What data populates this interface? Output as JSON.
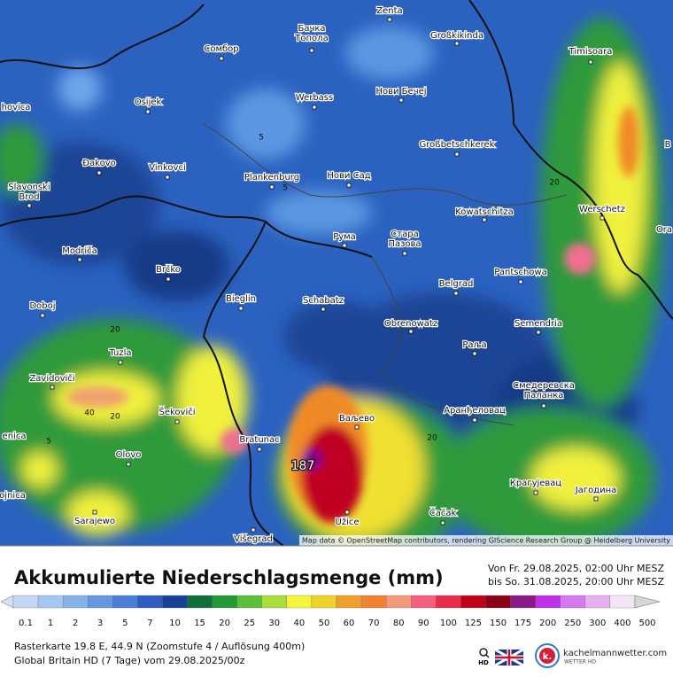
{
  "map": {
    "places": [
      [
        "Zenta"
      ],
      [
        "Бачка",
        "Топола"
      ],
      [
        "Großkikinda"
      ],
      [
        "Сомбор"
      ],
      [
        "Timisoara"
      ],
      [
        "hovica"
      ],
      [
        "Osijek"
      ],
      [
        "Werbass"
      ],
      [
        "Нови Бечеј"
      ],
      [
        "Großbetschkerek"
      ],
      [
        "B"
      ],
      [
        "Đakovo"
      ],
      [
        "Vinkovci"
      ],
      [
        "Plankenburg"
      ],
      [
        "Нови Сад"
      ],
      [
        "Slavonski",
        "Brod"
      ],
      [
        "Kowatschitza"
      ],
      [
        "Werschetz"
      ],
      [
        "Ora"
      ],
      [
        "Рума"
      ],
      [
        "Стара",
        "Пазова"
      ],
      [
        "Modriča"
      ],
      [
        "Brčko"
      ],
      [
        "Pantschowa"
      ],
      [
        "Belgrad"
      ],
      [
        "Bieglin"
      ],
      [
        "Schabatz"
      ],
      [
        "Doboj"
      ],
      [
        "Obrenowatz"
      ],
      [
        "Semendria"
      ],
      [
        "Раља"
      ],
      [
        "Tuzla"
      ],
      [
        "Zavidoviči"
      ],
      [
        "Смедеревска",
        "Паланка"
      ],
      [
        "Šekoviči"
      ],
      [
        "Аранђеловац"
      ],
      [
        "Ваљево"
      ],
      [
        "Bratunac"
      ],
      [
        "enica"
      ],
      [
        "Olovo"
      ],
      [
        "ojnica"
      ],
      [
        "Крагујевац"
      ],
      [
        "Јагодина"
      ],
      [
        "Užice"
      ],
      [
        "Čačak"
      ],
      [
        "Sarajewo"
      ],
      [
        "Višegrad"
      ]
    ],
    "contour_labels": [
      5,
      5,
      5,
      20,
      20,
      20,
      20,
      40
    ],
    "max_label": 187,
    "attribution": "Map data © OpenStreetMap contributors, rendering GIScience Research Group @ Heidelberg University"
  },
  "header": {
    "title": "Akkumulierte Niederschlagsmenge (mm)",
    "period": [
      "Von Fr. 29.08.2025, 02:00 Uhr MESZ",
      "bis So. 31.08.2025, 20:00 Uhr MESZ"
    ]
  },
  "legend": {
    "values": [
      0.1,
      1,
      2,
      3,
      5,
      7,
      10,
      15,
      20,
      25,
      30,
      40,
      50,
      60,
      70,
      80,
      90,
      100,
      125,
      150,
      175,
      200,
      250,
      300,
      400,
      500
    ]
  },
  "footer": {
    "lines": [
      "Rasterkarte 19.8 E, 44.9 N (Zoomstufe 4 / Auflösung 400m)",
      "Global Britain HD (7 Tage) vom 29.08.2025/00z"
    ],
    "hd": "HD",
    "site": "kachelmannwetter.com",
    "tagline": "WETTER HD",
    "logo": "k."
  }
}
